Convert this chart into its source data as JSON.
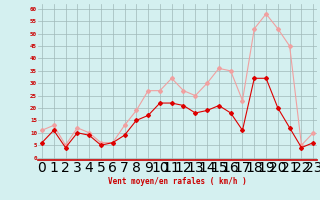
{
  "hours": [
    0,
    1,
    2,
    3,
    4,
    5,
    6,
    7,
    8,
    9,
    10,
    11,
    12,
    13,
    14,
    15,
    16,
    17,
    18,
    19,
    20,
    21,
    22,
    23
  ],
  "wind_avg": [
    6,
    11,
    4,
    10,
    9,
    5,
    6,
    9,
    15,
    17,
    22,
    22,
    21,
    18,
    19,
    21,
    18,
    11,
    32,
    32,
    20,
    12,
    4,
    6
  ],
  "wind_gust": [
    11,
    13,
    5,
    12,
    10,
    6,
    6,
    13,
    19,
    27,
    27,
    32,
    27,
    25,
    30,
    36,
    35,
    23,
    52,
    58,
    52,
    45,
    5,
    10
  ],
  "color_avg": "#f0a0a0",
  "color_gust": "#dd0000",
  "bg_color": "#d4f0f0",
  "grid_color": "#a0b8b8",
  "xlabel": "Vent moyen/en rafales ( km/h )",
  "xlabel_color": "#cc0000",
  "yticks": [
    0,
    5,
    10,
    15,
    20,
    25,
    30,
    35,
    40,
    45,
    50,
    55,
    60
  ],
  "ylim": [
    -1,
    62
  ],
  "xlim": [
    -0.3,
    23.3
  ],
  "tick_color": "#cc0000",
  "marker": "D",
  "markersize": 2.0
}
